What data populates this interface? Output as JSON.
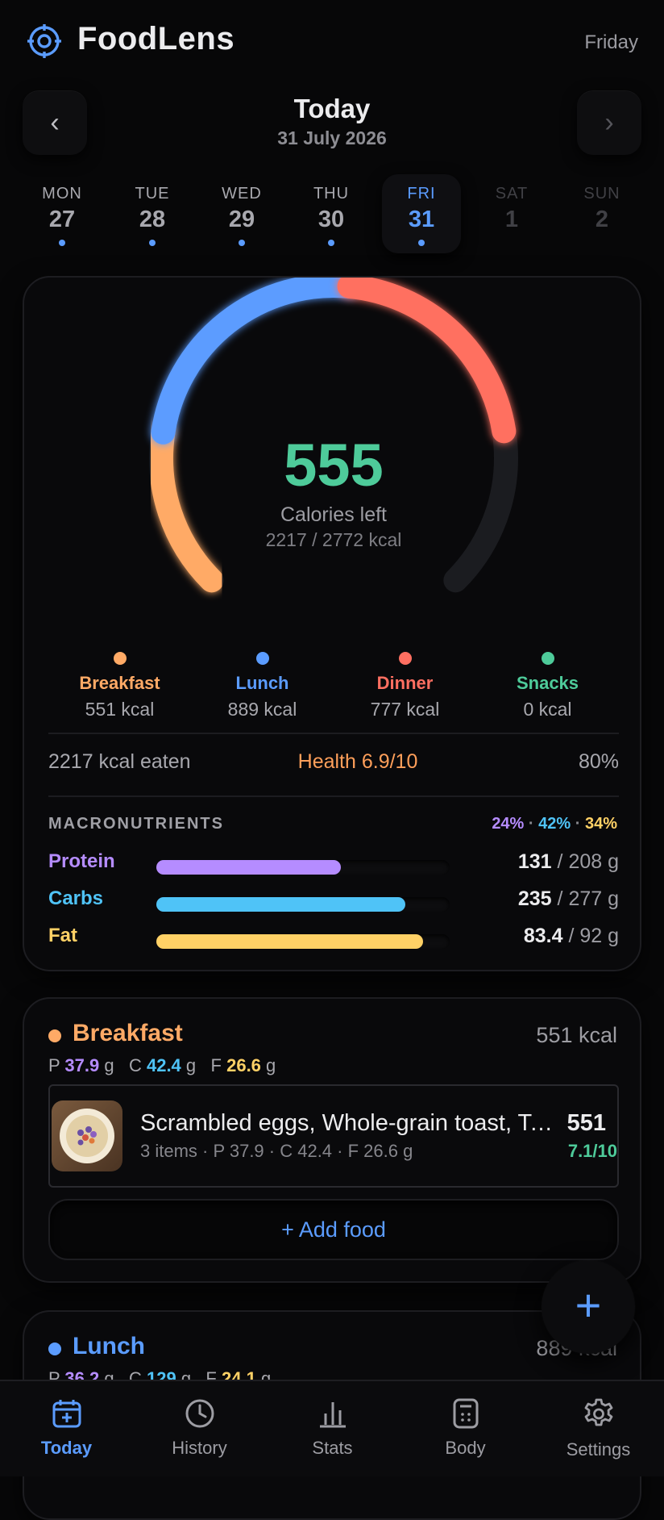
{
  "header": {
    "app_title": "FoodLens",
    "weekday": "Friday"
  },
  "date_nav": {
    "prev_label": "‹",
    "next_label": "›",
    "title": "Today",
    "date": "31 July 2026"
  },
  "week": [
    {
      "name": "MON",
      "num": "27",
      "logged": true,
      "state": "past"
    },
    {
      "name": "TUE",
      "num": "28",
      "logged": true,
      "state": "past"
    },
    {
      "name": "WED",
      "num": "29",
      "logged": true,
      "state": "past"
    },
    {
      "name": "THU",
      "num": "30",
      "logged": true,
      "state": "past"
    },
    {
      "name": "FRI",
      "num": "31",
      "logged": true,
      "state": "active"
    },
    {
      "name": "SAT",
      "num": "1",
      "logged": false,
      "state": "future"
    },
    {
      "name": "SUN",
      "num": "2",
      "logged": false,
      "state": "future"
    }
  ],
  "summary": {
    "calories_left": "555",
    "calories_left_label": "Calories left",
    "consumed_of_goal": "2217 / 2772 kcal",
    "gauge_segments": [
      {
        "meal": "Breakfast",
        "kcal": 551,
        "color": "#ffaa66"
      },
      {
        "meal": "Lunch",
        "kcal": 889,
        "color": "#5b9cff"
      },
      {
        "meal": "Dinner",
        "kcal": 777,
        "color": "#ff6f61"
      }
    ],
    "goal_kcal": 2772,
    "meals": [
      {
        "name": "Breakfast",
        "kcal": "551 kcal",
        "color": "#ffaa66"
      },
      {
        "name": "Lunch",
        "kcal": "889 kcal",
        "color": "#5b9cff"
      },
      {
        "name": "Dinner",
        "kcal": "777 kcal",
        "color": "#ff6f61"
      },
      {
        "name": "Snacks",
        "kcal": "0 kcal",
        "color": "#4ecb9a"
      }
    ],
    "eaten": "2217 kcal eaten",
    "health": "Health 6.9/10",
    "percent": "80%"
  },
  "macros": {
    "heading": "MACRONUTRIENTS",
    "split": {
      "protein": "24%",
      "carbs": "42%",
      "fat": "34%",
      "separator": "·"
    },
    "rows": [
      {
        "name": "Protein",
        "value": "131",
        "goal": "/ 208 g",
        "fraction": 0.63,
        "color": "#b58cff"
      },
      {
        "name": "Carbs",
        "value": "235",
        "goal": "/ 277 g",
        "fraction": 0.85,
        "color": "#4fc3f7"
      },
      {
        "name": "Fat",
        "value": "83.4",
        "goal": "/ 92 g",
        "fraction": 0.91,
        "color": "#ffd166"
      }
    ]
  },
  "breakfast": {
    "title": "Breakfast",
    "kcal": "551 kcal",
    "macros": {
      "p_label": "P",
      "p": "37.9",
      "c_label": "C",
      "c": "42.4",
      "f_label": "F",
      "f": "26.6",
      "unit": "g"
    },
    "item": {
      "name": "Scrambled eggs, Whole-grain toast, Tomato",
      "meta": "3 items · P 37.9 · C 42.4 · F 26.6 g",
      "kcal": "551",
      "score": "7.1/10"
    },
    "add_label": "+ Add food"
  },
  "lunch": {
    "title": "Lunch",
    "kcal": "889 kcal",
    "macros": {
      "p_label": "P",
      "p": "36.2",
      "c_label": "C",
      "c": "129",
      "f_label": "F",
      "f": "24.1",
      "unit": "g"
    }
  },
  "fab_label": "+",
  "bottom_nav": [
    {
      "label": "Today",
      "icon": "calendar-plus-icon",
      "active": true
    },
    {
      "label": "History",
      "icon": "clock-icon",
      "active": false
    },
    {
      "label": "Stats",
      "icon": "bar-chart-icon",
      "active": false
    },
    {
      "label": "Body",
      "icon": "scale-icon",
      "active": false
    },
    {
      "label": "Settings",
      "icon": "gear-icon",
      "active": false
    }
  ],
  "colors": {
    "accent": "#5b9cff",
    "good": "#4ecb9a",
    "health": "#ff9f5a"
  }
}
